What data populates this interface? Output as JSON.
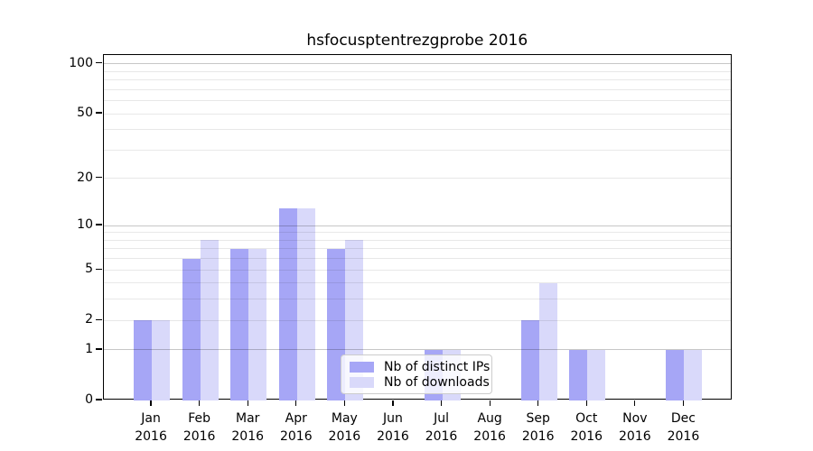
{
  "chart_data": {
    "type": "bar",
    "title": "hsfocusptentrezgprobe 2016",
    "year": "2016",
    "categories": [
      "Jan",
      "Feb",
      "Mar",
      "Apr",
      "May",
      "Jun",
      "Jul",
      "Aug",
      "Sep",
      "Oct",
      "Nov",
      "Dec"
    ],
    "series": [
      {
        "name": "Nb of distinct IPs",
        "color": "#a6a6f6",
        "values": [
          2,
          6,
          7,
          13,
          7,
          0,
          1,
          0,
          2,
          1,
          0,
          1
        ]
      },
      {
        "name": "Nb of downloads",
        "color": "#d9d9fa",
        "values": [
          2,
          8,
          7,
          13,
          8,
          0,
          1,
          0,
          4,
          1,
          0,
          1
        ]
      }
    ],
    "xlabel": "",
    "ylabel": "",
    "y_scale": "log1p",
    "ylim": [
      0,
      113
    ],
    "y_ticks": [
      0,
      1,
      2,
      5,
      10,
      20,
      50,
      100
    ],
    "grid_major": [
      1,
      10,
      100
    ],
    "grid_minor": [
      2,
      3,
      4,
      5,
      6,
      7,
      8,
      9,
      20,
      30,
      40,
      50,
      60,
      70,
      80,
      90
    ],
    "grid": "on",
    "legend_position": "lower-center",
    "colors": {
      "grid_major": "rgba(0,0,0,0.22)",
      "grid_minor": "rgba(0,0,0,0.09)",
      "axis": "#000000",
      "text": "#000000"
    }
  }
}
